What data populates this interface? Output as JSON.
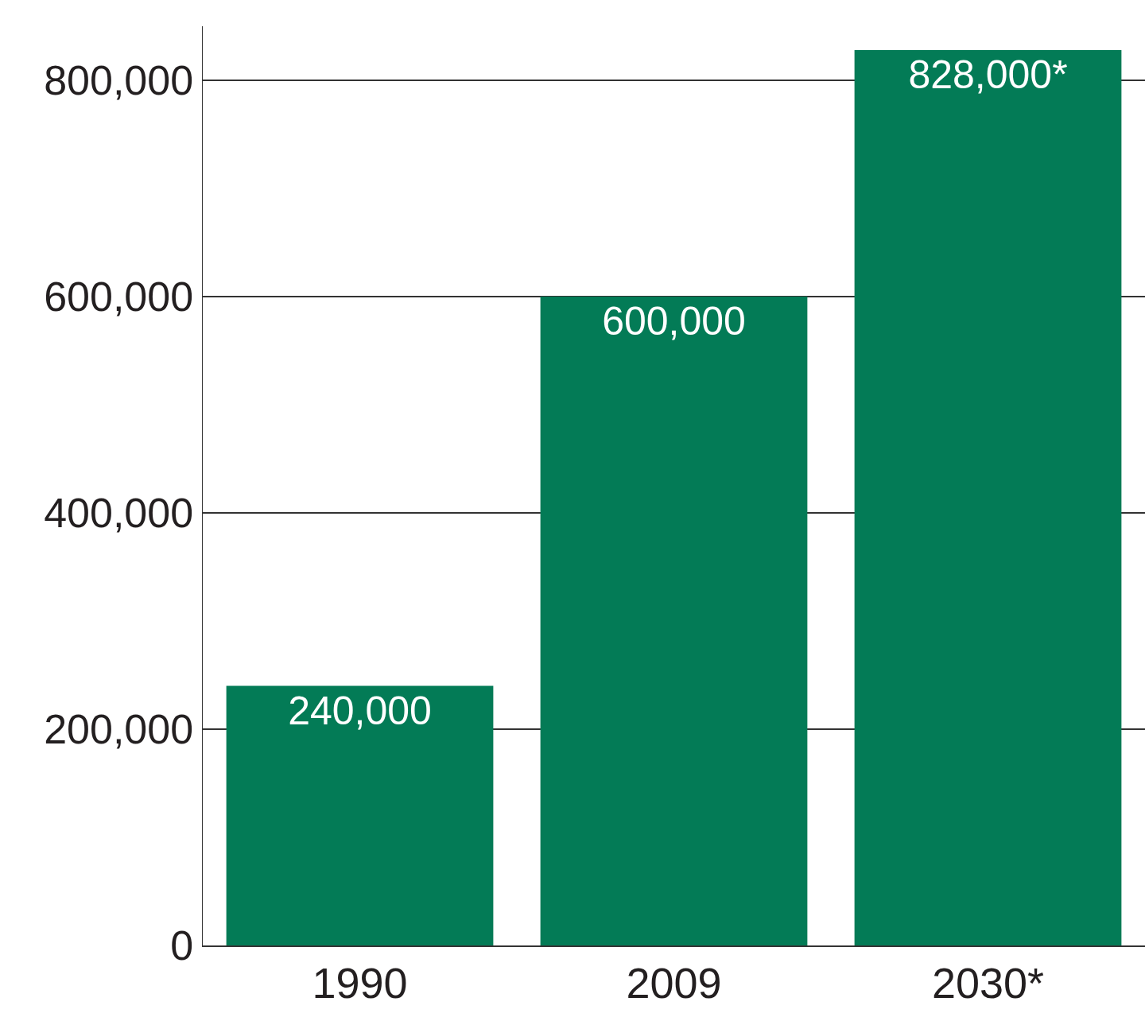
{
  "chart_data": {
    "type": "bar",
    "categories": [
      "1990",
      "2009",
      "2030*"
    ],
    "values": [
      240000,
      600000,
      828000
    ],
    "value_labels": [
      "240,000",
      "600,000",
      "828,000*"
    ],
    "data_labels": true,
    "color": "#037b56",
    "ylim": [
      0,
      850000
    ],
    "yticks": [
      0,
      {
        "value": 200000,
        "label": "200,000"
      },
      {
        "value": 400000,
        "label": "400,000"
      },
      {
        "value": 600000,
        "label": "600,000"
      },
      {
        "value": 800000,
        "label": "800,000"
      }
    ],
    "grid": true
  }
}
